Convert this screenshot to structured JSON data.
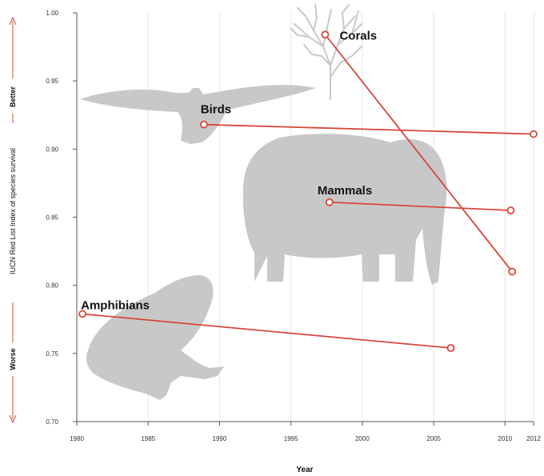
{
  "chart_data": {
    "type": "line",
    "xlabel": "Year",
    "ylabel": "IUCN Red List Index of species survival",
    "ylabel_better": "Better",
    "ylabel_worse": "Worse",
    "xlim": [
      1980,
      2012
    ],
    "ylim": [
      0.7,
      1.0
    ],
    "xticks": [
      "1980",
      "1985",
      "1990",
      "1995",
      "2000",
      "2005",
      "2010",
      "2012"
    ],
    "yticks": [
      "0.70",
      "0.75",
      "0.80",
      "0.85",
      "0.90",
      "0.95",
      "1.00"
    ],
    "grid": true,
    "series": [
      {
        "name": "Corals",
        "x": [
          1997.4,
          2010.5
        ],
        "y": [
          0.984,
          0.81
        ],
        "silhouette": "coral-icon"
      },
      {
        "name": "Birds",
        "x": [
          1988.9,
          2012.0
        ],
        "y": [
          0.918,
          0.911
        ],
        "silhouette": "bird-icon"
      },
      {
        "name": "Mammals",
        "x": [
          1997.7,
          2010.4
        ],
        "y": [
          0.861,
          0.855
        ],
        "silhouette": "elephant-icon"
      },
      {
        "name": "Amphibians",
        "x": [
          1980.4,
          2006.2
        ],
        "y": [
          0.779,
          0.754
        ],
        "silhouette": "frog-icon"
      }
    ],
    "colors": {
      "line": "#d9473a",
      "silhouette": "#c8c8c8",
      "grid": "#e6e6e6",
      "axis": "#555555"
    }
  }
}
